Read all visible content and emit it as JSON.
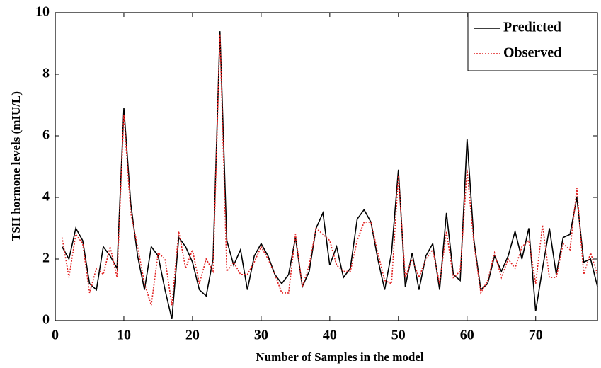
{
  "chart_data": {
    "type": "line",
    "xlabel": "Number of Samples in the model",
    "ylabel": "TSH hormone levels (mIU/L)",
    "x": [
      1,
      2,
      3,
      4,
      5,
      6,
      7,
      8,
      9,
      10,
      11,
      12,
      13,
      14,
      15,
      16,
      17,
      18,
      19,
      20,
      21,
      22,
      23,
      24,
      25,
      26,
      27,
      28,
      29,
      30,
      31,
      32,
      33,
      34,
      35,
      36,
      37,
      38,
      39,
      40,
      41,
      42,
      43,
      44,
      45,
      46,
      47,
      48,
      49,
      50,
      51,
      52,
      53,
      54,
      55,
      56,
      57,
      58,
      59,
      60,
      61,
      62,
      63,
      64,
      65,
      66,
      67,
      68,
      69,
      70,
      71,
      72,
      73,
      74,
      75,
      76,
      77,
      78,
      79
    ],
    "series": [
      {
        "name": "Predicted",
        "color": "#000000",
        "dash": "solid",
        "values": [
          2.4,
          2.0,
          3.0,
          2.6,
          1.2,
          1.0,
          2.4,
          2.1,
          1.7,
          6.9,
          3.8,
          2.1,
          1.0,
          2.4,
          2.1,
          1.0,
          0.05,
          2.7,
          2.4,
          1.9,
          1.0,
          0.8,
          2.0,
          9.4,
          2.6,
          1.8,
          2.3,
          1.0,
          2.1,
          2.5,
          2.1,
          1.5,
          1.2,
          1.5,
          2.7,
          1.1,
          1.6,
          3.0,
          3.5,
          1.8,
          2.4,
          1.4,
          1.7,
          3.3,
          3.6,
          3.2,
          2.0,
          1.0,
          2.2,
          4.9,
          1.1,
          2.2,
          1.0,
          2.1,
          2.5,
          1.0,
          3.5,
          1.5,
          1.3,
          5.9,
          2.6,
          1.0,
          1.2,
          2.1,
          1.6,
          2.1,
          2.9,
          2.0,
          3.0,
          0.3,
          1.7,
          3.0,
          1.5,
          2.7,
          2.8,
          4.0,
          1.9,
          2.0,
          1.1
        ]
      },
      {
        "name": "Observed",
        "color": "#e02020",
        "dash": "dotted",
        "values": [
          2.7,
          1.4,
          2.8,
          2.5,
          0.9,
          1.7,
          1.5,
          2.4,
          1.4,
          6.7,
          3.5,
          2.4,
          1.2,
          0.5,
          2.2,
          2.0,
          0.5,
          2.9,
          1.7,
          2.3,
          1.2,
          2.0,
          1.6,
          9.3,
          1.6,
          1.9,
          1.5,
          1.5,
          1.9,
          2.4,
          2.0,
          1.5,
          0.9,
          0.9,
          2.8,
          1.1,
          1.8,
          3.0,
          2.8,
          2.6,
          1.8,
          1.6,
          1.6,
          2.6,
          3.2,
          3.2,
          2.2,
          1.3,
          1.2,
          4.7,
          1.4,
          2.0,
          1.4,
          2.0,
          2.3,
          1.2,
          2.9,
          1.4,
          1.6,
          4.9,
          2.5,
          0.9,
          1.3,
          2.2,
          1.4,
          2.0,
          1.7,
          2.4,
          2.6,
          1.2,
          3.1,
          1.4,
          1.4,
          2.5,
          2.3,
          4.3,
          1.5,
          2.2,
          1.5
        ]
      }
    ],
    "xlim": [
      0,
      79
    ],
    "xticks": [
      0,
      10,
      20,
      30,
      40,
      50,
      60,
      70
    ],
    "ylim": [
      0,
      10
    ],
    "yticks": [
      0,
      2,
      4,
      6,
      8,
      10
    ],
    "legend": "upper right",
    "grid": false
  }
}
